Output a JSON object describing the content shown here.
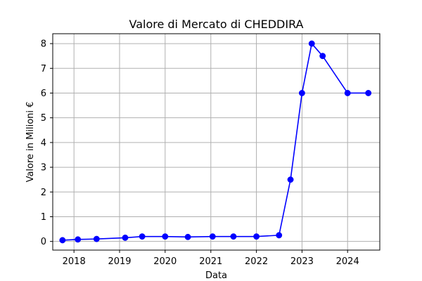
{
  "chart_data": {
    "type": "line",
    "title": "Valore di Mercato di CHEDDIRA",
    "xlabel": "Data",
    "ylabel": "Valore in Milioni €",
    "x_ticks": [
      "2018",
      "2019",
      "2020",
      "2021",
      "2022",
      "2023",
      "2024"
    ],
    "y_ticks": [
      "0",
      "1",
      "2",
      "3",
      "4",
      "5",
      "6",
      "7",
      "8"
    ],
    "xlim": [
      "2017-07-15",
      "2024-09-15"
    ],
    "ylim": [
      -0.35,
      8.4
    ],
    "grid": true,
    "marker": "circle",
    "line_color": "#0000ff",
    "series": [
      {
        "x": [
          "2017-10-01",
          "2018-02-01",
          "2018-07-01",
          "2019-02-15",
          "2019-07-01",
          "2020-01-01",
          "2020-07-01",
          "2021-01-15",
          "2021-07-01",
          "2022-01-01",
          "2022-07-01",
          "2022-10-01",
          "2023-01-01",
          "2023-03-20",
          "2023-06-15",
          "2024-01-01",
          "2024-06-15"
        ],
        "y": [
          0.05,
          0.08,
          0.1,
          0.15,
          0.2,
          0.2,
          0.18,
          0.2,
          0.2,
          0.2,
          0.25,
          2.5,
          6.0,
          8.0,
          7.5,
          6.0,
          6.0
        ]
      }
    ]
  }
}
